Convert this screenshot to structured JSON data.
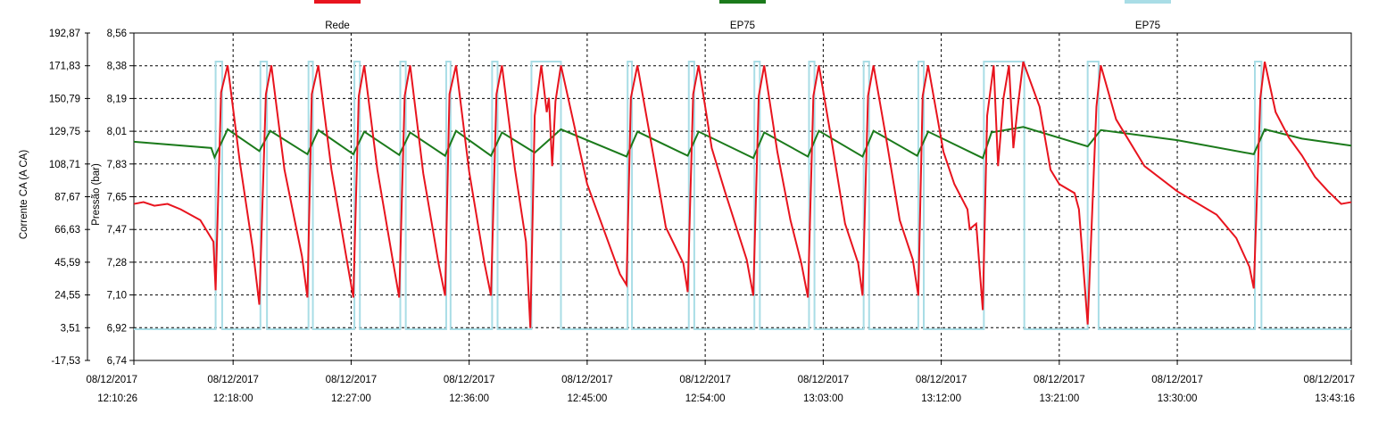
{
  "chart_data": {
    "type": "line",
    "title": "",
    "xlabel": "",
    "ylabel_left": "Corrente CA (A CA)",
    "ylabel_right": "Pressão (bar)",
    "legend_position": "top",
    "grid": true,
    "x_start": "2017-12-08T12:10:26",
    "x_end": "2017-12-08T13:43:16",
    "x_ticks": [
      {
        "time": "12:10:26",
        "date": "08/12/2017",
        "label": "12:10:26"
      },
      {
        "time": "12:18:00",
        "date": "08/12/2017",
        "label": "12:18:00"
      },
      {
        "time": "12:27:00",
        "date": "08/12/2017",
        "label": "12:27:00"
      },
      {
        "time": "12:36:00",
        "date": "08/12/2017",
        "label": "12:36:00"
      },
      {
        "time": "12:45:00",
        "date": "08/12/2017",
        "label": "12:45:00"
      },
      {
        "time": "12:54:00",
        "date": "08/12/2017",
        "label": "12:54:00"
      },
      {
        "time": "13:03:00",
        "date": "08/12/2017",
        "label": "13:03:00"
      },
      {
        "time": "13:12:00",
        "date": "08/12/2017",
        "label": "13:12:00"
      },
      {
        "time": "13:21:00",
        "date": "08/12/2017",
        "label": "13:21:00"
      },
      {
        "time": "13:30:00",
        "date": "08/12/2017",
        "label": "13:30:00"
      },
      {
        "time": "13:43:16",
        "date": "08/12/2017",
        "label": "13:43:16"
      }
    ],
    "y_left_ticks": [
      "192,87",
      "171,83",
      "150,79",
      "129,75",
      "108,71",
      "87,67",
      "66,63",
      "45,59",
      "24,55",
      "3,51",
      "-17,53"
    ],
    "y_left_range": [
      -17.53,
      192.87
    ],
    "y_right_ticks": [
      "8,56",
      "8,38",
      "8,19",
      "8,01",
      "7,83",
      "7,65",
      "7,47",
      "7,28",
      "7,10",
      "6,92",
      "6,74"
    ],
    "y_right_range": [
      6.74,
      8.56
    ],
    "series": [
      {
        "name": "Rede",
        "color": "#e8141e",
        "axis": "right",
        "points": [
          [
            "12:10:26",
            7.61
          ],
          [
            "12:11:10",
            7.62
          ],
          [
            "12:12:00",
            7.6
          ],
          [
            "12:13:00",
            7.61
          ],
          [
            "12:14:00",
            7.58
          ],
          [
            "12:15:30",
            7.52
          ],
          [
            "12:16:30",
            7.4
          ],
          [
            "12:16:40",
            7.13
          ],
          [
            "12:17:05",
            8.23
          ],
          [
            "12:17:35",
            8.38
          ],
          [
            "12:18:30",
            7.85
          ],
          [
            "12:19:30",
            7.36
          ],
          [
            "12:20:00",
            7.05
          ],
          [
            "12:20:30",
            8.22
          ],
          [
            "12:20:55",
            8.38
          ],
          [
            "12:21:55",
            7.8
          ],
          [
            "12:23:15",
            7.32
          ],
          [
            "12:23:40",
            7.09
          ],
          [
            "12:24:00",
            8.22
          ],
          [
            "12:24:30",
            8.38
          ],
          [
            "12:25:30",
            7.8
          ],
          [
            "12:26:40",
            7.3
          ],
          [
            "12:27:10",
            7.09
          ],
          [
            "12:27:35",
            8.21
          ],
          [
            "12:28:00",
            8.38
          ],
          [
            "12:29:00",
            7.8
          ],
          [
            "12:30:10",
            7.3
          ],
          [
            "12:30:40",
            7.09
          ],
          [
            "12:31:05",
            8.21
          ],
          [
            "12:31:30",
            8.38
          ],
          [
            "12:32:30",
            7.78
          ],
          [
            "12:33:40",
            7.28
          ],
          [
            "12:34:10",
            7.1
          ],
          [
            "12:34:30",
            8.22
          ],
          [
            "12:35:00",
            8.38
          ],
          [
            "12:36:00",
            7.79
          ],
          [
            "12:37:10",
            7.28
          ],
          [
            "12:37:40",
            7.1
          ],
          [
            "12:38:05",
            8.22
          ],
          [
            "12:38:30",
            8.38
          ],
          [
            "12:39:30",
            7.8
          ],
          [
            "12:40:20",
            7.4
          ],
          [
            "12:40:40",
            6.92
          ],
          [
            "12:41:00",
            8.1
          ],
          [
            "12:41:30",
            8.38
          ],
          [
            "12:41:55",
            8.12
          ],
          [
            "12:42:05",
            8.2
          ],
          [
            "12:42:20",
            7.82
          ],
          [
            "12:42:35",
            8.18
          ],
          [
            "12:43:00",
            8.38
          ],
          [
            "12:44:00",
            8.05
          ],
          [
            "12:45:00",
            7.72
          ],
          [
            "12:46:00",
            7.52
          ],
          [
            "12:47:30",
            7.22
          ],
          [
            "12:48:00",
            7.16
          ],
          [
            "12:48:20",
            8.2
          ],
          [
            "12:48:50",
            8.38
          ],
          [
            "12:50:00",
            7.9
          ],
          [
            "12:51:00",
            7.48
          ],
          [
            "12:52:20",
            7.28
          ],
          [
            "12:52:40",
            7.12
          ],
          [
            "12:53:05",
            8.22
          ],
          [
            "12:53:30",
            8.38
          ],
          [
            "12:54:30",
            7.92
          ],
          [
            "12:55:30",
            7.68
          ],
          [
            "12:57:10",
            7.3
          ],
          [
            "12:57:40",
            7.1
          ],
          [
            "12:58:05",
            8.21
          ],
          [
            "12:58:30",
            8.38
          ],
          [
            "12:59:30",
            7.9
          ],
          [
            "13:00:30",
            7.52
          ],
          [
            "13:01:20",
            7.28
          ],
          [
            "13:01:50",
            7.09
          ],
          [
            "13:02:15",
            8.21
          ],
          [
            "13:02:40",
            8.38
          ],
          [
            "13:03:40",
            7.95
          ],
          [
            "13:04:40",
            7.5
          ],
          [
            "13:05:40",
            7.28
          ],
          [
            "13:06:00",
            7.1
          ],
          [
            "13:06:25",
            8.21
          ],
          [
            "13:06:50",
            8.38
          ],
          [
            "13:07:50",
            7.96
          ],
          [
            "13:08:50",
            7.52
          ],
          [
            "13:09:50",
            7.3
          ],
          [
            "13:10:15",
            7.1
          ],
          [
            "13:10:35",
            8.21
          ],
          [
            "13:11:00",
            8.38
          ],
          [
            "13:12:10",
            7.9
          ],
          [
            "13:13:00",
            7.72
          ],
          [
            "13:14:00",
            7.58
          ],
          [
            "13:14:10",
            7.47
          ],
          [
            "13:14:40",
            7.5
          ],
          [
            "13:15:10",
            7.02
          ],
          [
            "13:15:30",
            8.1
          ],
          [
            "13:16:00",
            8.38
          ],
          [
            "13:16:20",
            7.82
          ],
          [
            "13:16:45",
            8.2
          ],
          [
            "13:17:10",
            8.38
          ],
          [
            "13:17:30",
            7.92
          ],
          [
            "13:17:50",
            8.15
          ],
          [
            "13:18:15",
            8.4
          ],
          [
            "13:19:30",
            8.15
          ],
          [
            "13:20:20",
            7.8
          ],
          [
            "13:21:00",
            7.72
          ],
          [
            "13:22:10",
            7.67
          ],
          [
            "13:22:30",
            7.58
          ],
          [
            "13:23:10",
            6.94
          ],
          [
            "13:23:50",
            8.15
          ],
          [
            "13:24:10",
            8.38
          ],
          [
            "13:25:20",
            8.08
          ],
          [
            "13:27:30",
            7.82
          ],
          [
            "13:30:00",
            7.68
          ],
          [
            "13:33:00",
            7.55
          ],
          [
            "13:34:30",
            7.42
          ],
          [
            "13:35:30",
            7.26
          ],
          [
            "13:35:50",
            7.14
          ],
          [
            "13:36:20",
            8.2
          ],
          [
            "13:36:40",
            8.4
          ],
          [
            "13:37:30",
            8.12
          ],
          [
            "13:38:30",
            7.98
          ],
          [
            "13:39:30",
            7.88
          ],
          [
            "13:40:30",
            7.76
          ],
          [
            "13:41:30",
            7.68
          ],
          [
            "13:42:30",
            7.61
          ],
          [
            "13:43:16",
            7.62
          ]
        ]
      },
      {
        "name": "EP75",
        "color": "#1b7a1b",
        "axis": "left",
        "points": [
          [
            "12:10:26",
            123.0
          ],
          [
            "12:16:20",
            119.0
          ],
          [
            "12:16:35",
            113.0
          ],
          [
            "12:17:35",
            131.0
          ],
          [
            "12:20:00",
            117.0
          ],
          [
            "12:20:50",
            130.0
          ],
          [
            "12:23:40",
            115.0
          ],
          [
            "12:24:30",
            130.5
          ],
          [
            "12:27:10",
            115.0
          ],
          [
            "12:28:00",
            129.5
          ],
          [
            "12:30:40",
            114.5
          ],
          [
            "12:31:30",
            129.0
          ],
          [
            "12:34:10",
            114.0
          ],
          [
            "12:35:00",
            130.0
          ],
          [
            "12:37:40",
            114.0
          ],
          [
            "12:38:30",
            129.0
          ],
          [
            "12:41:00",
            116.0
          ],
          [
            "12:43:00",
            131.0
          ],
          [
            "12:48:00",
            113.5
          ],
          [
            "12:48:50",
            129.5
          ],
          [
            "12:52:40",
            114.0
          ],
          [
            "12:53:30",
            129.5
          ],
          [
            "12:57:40",
            112.5
          ],
          [
            "12:58:30",
            129.0
          ],
          [
            "13:01:50",
            113.5
          ],
          [
            "13:02:40",
            130.0
          ],
          [
            "13:06:00",
            113.5
          ],
          [
            "13:06:50",
            130.0
          ],
          [
            "13:10:10",
            114.0
          ],
          [
            "13:11:00",
            129.5
          ],
          [
            "13:15:10",
            112.5
          ],
          [
            "13:15:50",
            129.0
          ],
          [
            "13:18:15",
            132.5
          ],
          [
            "13:23:10",
            120.0
          ],
          [
            "13:24:10",
            130.5
          ],
          [
            "13:30:00",
            124.0
          ],
          [
            "13:35:50",
            115.0
          ],
          [
            "13:36:40",
            131.0
          ],
          [
            "13:39:30",
            125.0
          ],
          [
            "13:43:16",
            120.5
          ]
        ]
      },
      {
        "name": "EP75",
        "color": "#a9dde6",
        "axis": "left",
        "low": 2.5,
        "high": 174.5,
        "on_intervals": [
          [
            "12:16:40",
            "12:17:10"
          ],
          [
            "12:20:05",
            "12:20:35"
          ],
          [
            "12:23:45",
            "12:24:05"
          ],
          [
            "12:27:15",
            "12:27:40"
          ],
          [
            "12:30:45",
            "12:31:10"
          ],
          [
            "12:34:15",
            "12:34:35"
          ],
          [
            "12:37:45",
            "12:38:10"
          ],
          [
            "12:40:45",
            "12:43:00"
          ],
          [
            "12:48:05",
            "12:48:25"
          ],
          [
            "12:52:45",
            "12:53:10"
          ],
          [
            "12:57:45",
            "12:58:10"
          ],
          [
            "13:01:55",
            "13:02:20"
          ],
          [
            "13:06:05",
            "13:06:30"
          ],
          [
            "13:10:15",
            "13:10:40"
          ],
          [
            "13:15:15",
            "13:18:20"
          ],
          [
            "13:23:10",
            "13:24:00"
          ],
          [
            "13:35:55",
            "13:36:25"
          ]
        ]
      }
    ]
  }
}
